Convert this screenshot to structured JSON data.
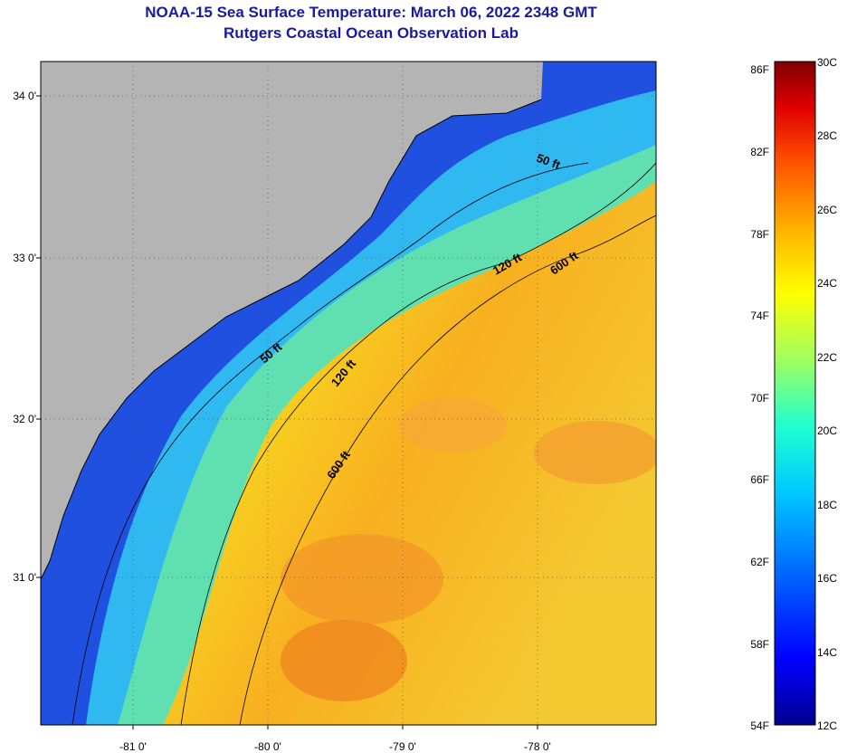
{
  "title": "NOAA-15 Sea Surface Temperature:  March 06, 2022 2348 GMT",
  "subtitle": "Rutgers Coastal Ocean Observation Lab",
  "map": {
    "region": "South Carolina / Georgia coast",
    "lat_labels": [
      "34 0'",
      "33 0'",
      "32 0'",
      "31 0'"
    ],
    "lon_labels": [
      "-81 0'",
      "-80 0'",
      "-79 0'",
      "-78 0'"
    ],
    "contours": [
      {
        "name": "contour-50ft",
        "label": "50 ft"
      },
      {
        "name": "contour-120ft",
        "label": "120 ft"
      },
      {
        "name": "contour-600ft",
        "label": "600 ft"
      }
    ]
  },
  "colorbar": {
    "fahrenheit_labels": [
      "86F",
      "82F",
      "78F",
      "74F",
      "70F",
      "66F",
      "62F",
      "58F",
      "54F"
    ],
    "celsius_labels": [
      "30C",
      "28C",
      "26C",
      "24C",
      "22C",
      "20C",
      "18C",
      "16C",
      "14C",
      "12C"
    ],
    "range_c": [
      12,
      30
    ],
    "colors": [
      "#000090",
      "#0000ff",
      "#0060ff",
      "#00c8ff",
      "#20ffd0",
      "#a0ff60",
      "#ffff00",
      "#ffb000",
      "#ff5000",
      "#e00000",
      "#800000"
    ]
  },
  "colors": {
    "land": "#b4b4b4",
    "title": "#1a1aa0",
    "ocean_warm": "#f0c020",
    "ocean_cool": "#2040e0"
  }
}
